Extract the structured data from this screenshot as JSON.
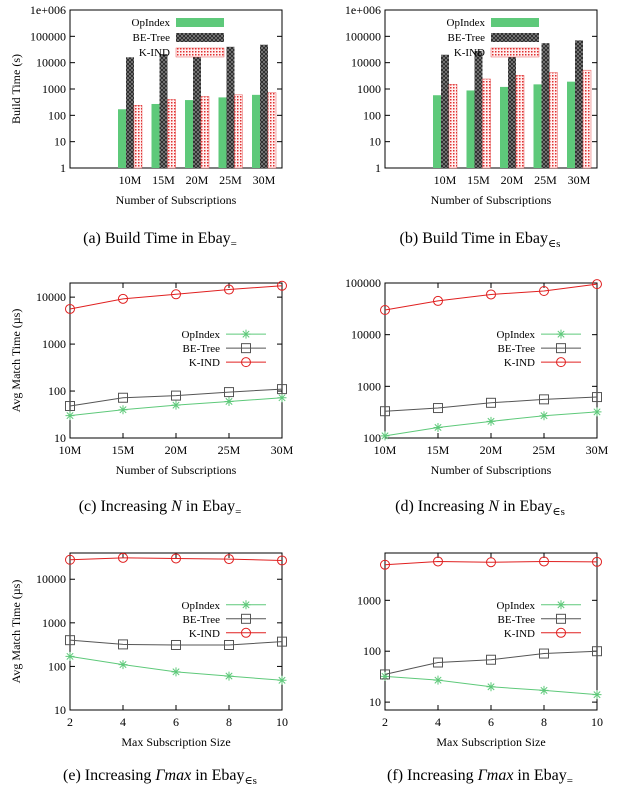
{
  "colors": {
    "opindex": "#5ec97a",
    "betree_fill": "#6a6a6a",
    "kind_fill": "#f2d0d0",
    "kind_line": "#e02020",
    "betree_line": "#555555",
    "axis": "#000000"
  },
  "chart_data": [
    {
      "id": "a",
      "type": "bar",
      "scale": "log",
      "categories": [
        "10M",
        "15M",
        "20M",
        "25M",
        "30M"
      ],
      "ylim": [
        1,
        1000000
      ],
      "ytick_values": [
        1,
        10,
        100,
        1000,
        10000,
        100000,
        1000000
      ],
      "ytick_labels": [
        "1",
        "10",
        "100",
        "1000",
        "10000",
        "100000",
        "1e+006"
      ],
      "xlabel": "Number of Subscriptions",
      "ylabel": "Build Time (s)",
      "legend_position": "top-right",
      "series": [
        {
          "name": "OpIndex",
          "style": "solid",
          "values": [
            170,
            270,
            380,
            480,
            600
          ]
        },
        {
          "name": "BE-Tree",
          "style": "crosshatch",
          "values": [
            16000,
            21000,
            23000,
            40000,
            48000
          ]
        },
        {
          "name": "K-IND",
          "style": "dots",
          "values": [
            240,
            400,
            520,
            600,
            720
          ]
        }
      ],
      "caption": {
        "prefix": "(a)  Build Time in Ebay",
        "sub": "="
      }
    },
    {
      "id": "b",
      "type": "bar",
      "scale": "log",
      "categories": [
        "10M",
        "15M",
        "20M",
        "25M",
        "30M"
      ],
      "ylim": [
        1,
        1000000
      ],
      "ytick_values": [
        1,
        10,
        100,
        1000,
        10000,
        100000,
        1000000
      ],
      "ytick_labels": [
        "1",
        "10",
        "100",
        "1000",
        "10000",
        "100000",
        "1e+006"
      ],
      "xlabel": "Number of Subscriptions",
      "ylabel": "",
      "legend_position": "top-right",
      "series": [
        {
          "name": "OpIndex",
          "style": "solid",
          "values": [
            580,
            880,
            1200,
            1500,
            1900
          ]
        },
        {
          "name": "BE-Tree",
          "style": "crosshatch",
          "values": [
            20000,
            28000,
            25000,
            55000,
            70000
          ]
        },
        {
          "name": "K-IND",
          "style": "dots",
          "values": [
            1500,
            2400,
            3300,
            4200,
            5200
          ]
        }
      ],
      "caption": {
        "prefix": "(b)  Build Time in Ebay",
        "sub": "∈s"
      }
    },
    {
      "id": "c",
      "type": "line",
      "scale": "log",
      "x": [
        "10M",
        "15M",
        "20M",
        "25M",
        "30M"
      ],
      "ylim": [
        10,
        20000
      ],
      "ytick_values": [
        10,
        100,
        1000,
        10000
      ],
      "ytick_labels": [
        "10",
        "100",
        "1000",
        "10000"
      ],
      "xlabel": "Number of Subscriptions",
      "ylabel": "Avg Match Time (µs)",
      "legend_position": "right",
      "series": [
        {
          "name": "OpIndex",
          "marker": "star",
          "values": [
            30,
            40,
            50,
            60,
            72
          ]
        },
        {
          "name": "BE-Tree",
          "marker": "square",
          "values": [
            48,
            72,
            80,
            95,
            110
          ]
        },
        {
          "name": "K-IND",
          "marker": "circle",
          "values": [
            5600,
            9200,
            11500,
            14500,
            17500
          ]
        }
      ],
      "caption": {
        "prefix": "(c)  Increasing ",
        "italic": "N",
        "middle": " in Ebay",
        "sub": "="
      }
    },
    {
      "id": "d",
      "type": "line",
      "scale": "log",
      "x": [
        "10M",
        "15M",
        "20M",
        "25M",
        "30M"
      ],
      "ylim": [
        100,
        100000
      ],
      "ytick_values": [
        100,
        1000,
        10000,
        100000
      ],
      "ytick_labels": [
        "100",
        "1000",
        "10000",
        "100000"
      ],
      "xlabel": "Number of Subscriptions",
      "ylabel": "",
      "legend_position": "right",
      "series": [
        {
          "name": "OpIndex",
          "marker": "star",
          "values": [
            110,
            160,
            210,
            270,
            320
          ]
        },
        {
          "name": "BE-Tree",
          "marker": "square",
          "values": [
            330,
            380,
            480,
            560,
            620
          ]
        },
        {
          "name": "K-IND",
          "marker": "circle",
          "values": [
            30000,
            45000,
            60000,
            70000,
            95000
          ]
        }
      ],
      "caption": {
        "prefix": "(d)  Increasing ",
        "italic": "N",
        "middle": " in Ebay",
        "sub": "∈s"
      }
    },
    {
      "id": "e",
      "type": "line",
      "scale": "log",
      "x": [
        "2",
        "4",
        "6",
        "8",
        "10"
      ],
      "ylim": [
        10,
        40000
      ],
      "ytick_values": [
        10,
        100,
        1000,
        10000
      ],
      "ytick_labels": [
        "10",
        "100",
        "1000",
        "10000"
      ],
      "xlabel": "Max Subscription Size",
      "ylabel": "Avg Match Time (µs)",
      "legend_position": "right",
      "series": [
        {
          "name": "OpIndex",
          "marker": "star",
          "values": [
            170,
            110,
            75,
            60,
            48
          ]
        },
        {
          "name": "BE-Tree",
          "marker": "square",
          "values": [
            400,
            320,
            310,
            310,
            370
          ]
        },
        {
          "name": "K-IND",
          "marker": "circle",
          "values": [
            28000,
            31000,
            30000,
            29000,
            27000
          ]
        }
      ],
      "caption": {
        "prefix": "(e)  Increasing ",
        "italic": "Γmax",
        "middle": " in Ebay",
        "sub": "∈s"
      }
    },
    {
      "id": "f",
      "type": "line",
      "scale": "log",
      "x": [
        "2",
        "4",
        "6",
        "8",
        "10"
      ],
      "ylim": [
        7,
        8500
      ],
      "ytick_values": [
        10,
        100,
        1000
      ],
      "ytick_labels": [
        "10",
        "100",
        "1000"
      ],
      "xlabel": "Max Subscription Size",
      "ylabel": "",
      "legend_position": "right",
      "series": [
        {
          "name": "OpIndex",
          "marker": "star",
          "values": [
            32,
            27,
            20,
            17,
            14
          ]
        },
        {
          "name": "BE-Tree",
          "marker": "square",
          "values": [
            35,
            60,
            68,
            90,
            100
          ]
        },
        {
          "name": "K-IND",
          "marker": "circle",
          "values": [
            5000,
            5800,
            5600,
            5800,
            5700
          ]
        }
      ],
      "caption": {
        "prefix": "(f)  Increasing ",
        "italic": "Γmax",
        "middle": " in Ebay",
        "sub": "="
      }
    }
  ]
}
